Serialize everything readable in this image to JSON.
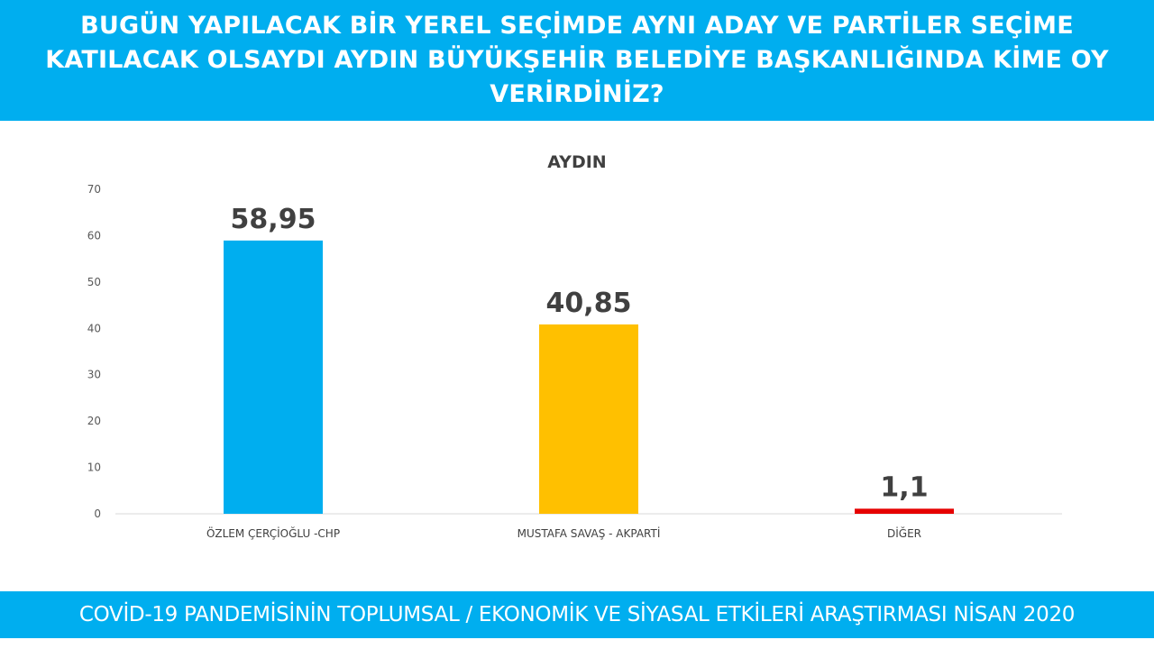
{
  "header": {
    "title": "BUGÜN YAPILACAK BİR YEREL SEÇİMDE AYNI ADAY VE PARTİLER SEÇİME KATILACAK OLSAYDI AYDIN BÜYÜKŞEHİR BELEDİYE BAŞKANLIĞINDA KİME OY VERİRDİNİZ?"
  },
  "chart_data": {
    "type": "bar",
    "title": "AYDIN",
    "categories": [
      "ÖZLEM ÇERÇİOĞLU -CHP",
      "MUSTAFA SAVAŞ - AKPARTİ",
      "DİĞER"
    ],
    "values": [
      58.95,
      40.85,
      1.1
    ],
    "value_labels": [
      "58,95",
      "40,85",
      "1,1"
    ],
    "colors": [
      "#00aeef",
      "#ffc000",
      "#e60000"
    ],
    "ylim": [
      0,
      70
    ],
    "yticks": [
      0,
      10,
      20,
      30,
      40,
      50,
      60,
      70
    ],
    "xlabel": "",
    "ylabel": "",
    "grid": false,
    "legend": "none"
  },
  "footer": {
    "text": "COVİD-19 PANDEMİSİNİN TOPLUMSAL / EKONOMİK VE SİYASAL ETKİLERİ ARAŞTIRMASI NİSAN 2020"
  }
}
